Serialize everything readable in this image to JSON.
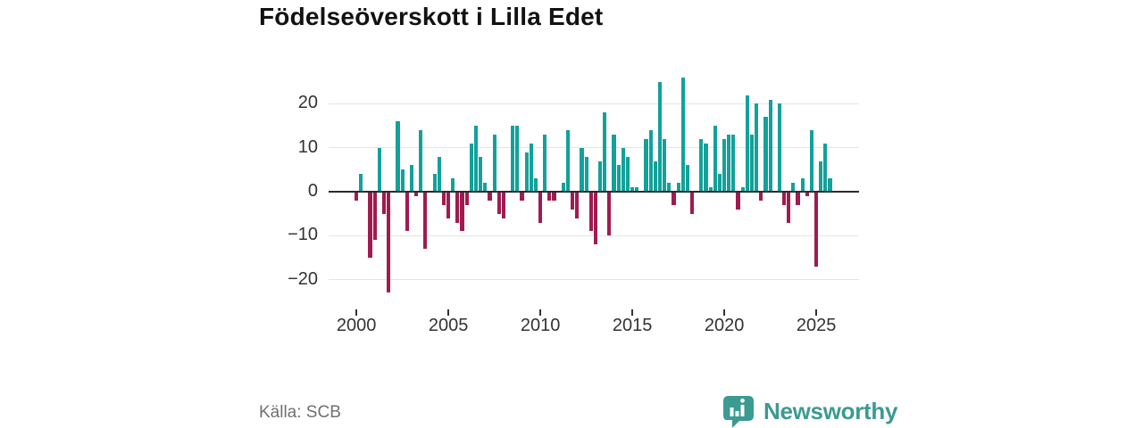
{
  "title": "Födelseöverskott i Lilla Edet",
  "brand": {
    "name": "Newsworthy"
  },
  "colors": {
    "positive_bar": "#13a19a",
    "negative_bar": "#a01b51",
    "gridline": "#e4e4e4",
    "zero_line": "#2a2a2a",
    "axis_text": "#333333",
    "title_text": "#121212",
    "source_text": "#707070",
    "brand_teal": "#3b9a92"
  },
  "chart_data": {
    "type": "bar",
    "title": "Födelseöverskott i Lilla Edet",
    "source": "Källa: SCB",
    "frequency": "quarterly",
    "grid": "horizontal",
    "legend": "none",
    "x_axis": {
      "tick_years": [
        2000,
        2005,
        2010,
        2015,
        2020,
        2025
      ]
    },
    "y_axis": {
      "ticks": [
        20,
        10,
        0,
        -10,
        -20
      ],
      "range": [
        -26,
        28
      ]
    },
    "series": [
      {
        "name": "Födelseöverskott",
        "start": "2000Q1",
        "years": [
          {
            "year": 2000,
            "values": [
              -2,
              4,
              0,
              -15
            ]
          },
          {
            "year": 2001,
            "values": [
              -11,
              10,
              -5,
              -23
            ]
          },
          {
            "year": 2002,
            "values": [
              0,
              16,
              5,
              -9
            ]
          },
          {
            "year": 2003,
            "values": [
              6,
              -1,
              14,
              -13
            ]
          },
          {
            "year": 2004,
            "values": [
              0,
              4,
              8,
              -3
            ]
          },
          {
            "year": 2005,
            "values": [
              -6,
              3,
              -7,
              -9
            ]
          },
          {
            "year": 2006,
            "values": [
              -3,
              11,
              15,
              8
            ]
          },
          {
            "year": 2007,
            "values": [
              2,
              -2,
              13,
              -5
            ]
          },
          {
            "year": 2008,
            "values": [
              -6,
              0,
              15,
              15
            ]
          },
          {
            "year": 2009,
            "values": [
              -2,
              9,
              11,
              3
            ]
          },
          {
            "year": 2010,
            "values": [
              -7,
              13,
              -2,
              -2
            ]
          },
          {
            "year": 2011,
            "values": [
              0,
              2,
              14,
              -4
            ]
          },
          {
            "year": 2012,
            "values": [
              -6,
              10,
              8,
              -9
            ]
          },
          {
            "year": 2013,
            "values": [
              -12,
              7,
              18,
              -10
            ]
          },
          {
            "year": 2014,
            "values": [
              13,
              6,
              10,
              8
            ]
          },
          {
            "year": 2015,
            "values": [
              1,
              1,
              0,
              12
            ]
          },
          {
            "year": 2016,
            "values": [
              14,
              7,
              25,
              12
            ]
          },
          {
            "year": 2017,
            "values": [
              2,
              -3,
              2,
              26
            ]
          },
          {
            "year": 2018,
            "values": [
              6,
              -5,
              0,
              12
            ]
          },
          {
            "year": 2019,
            "values": [
              11,
              1,
              15,
              4
            ]
          },
          {
            "year": 2020,
            "values": [
              12,
              13,
              13,
              -4
            ]
          },
          {
            "year": 2021,
            "values": [
              1,
              22,
              13,
              20
            ]
          },
          {
            "year": 2022,
            "values": [
              -2,
              17,
              21,
              0
            ]
          },
          {
            "year": 2023,
            "values": [
              20,
              -3,
              -7,
              2
            ]
          },
          {
            "year": 2024,
            "values": [
              -3,
              3,
              -1,
              14
            ]
          },
          {
            "year": 2025,
            "values": [
              -17,
              7,
              11,
              3
            ]
          }
        ]
      }
    ]
  }
}
